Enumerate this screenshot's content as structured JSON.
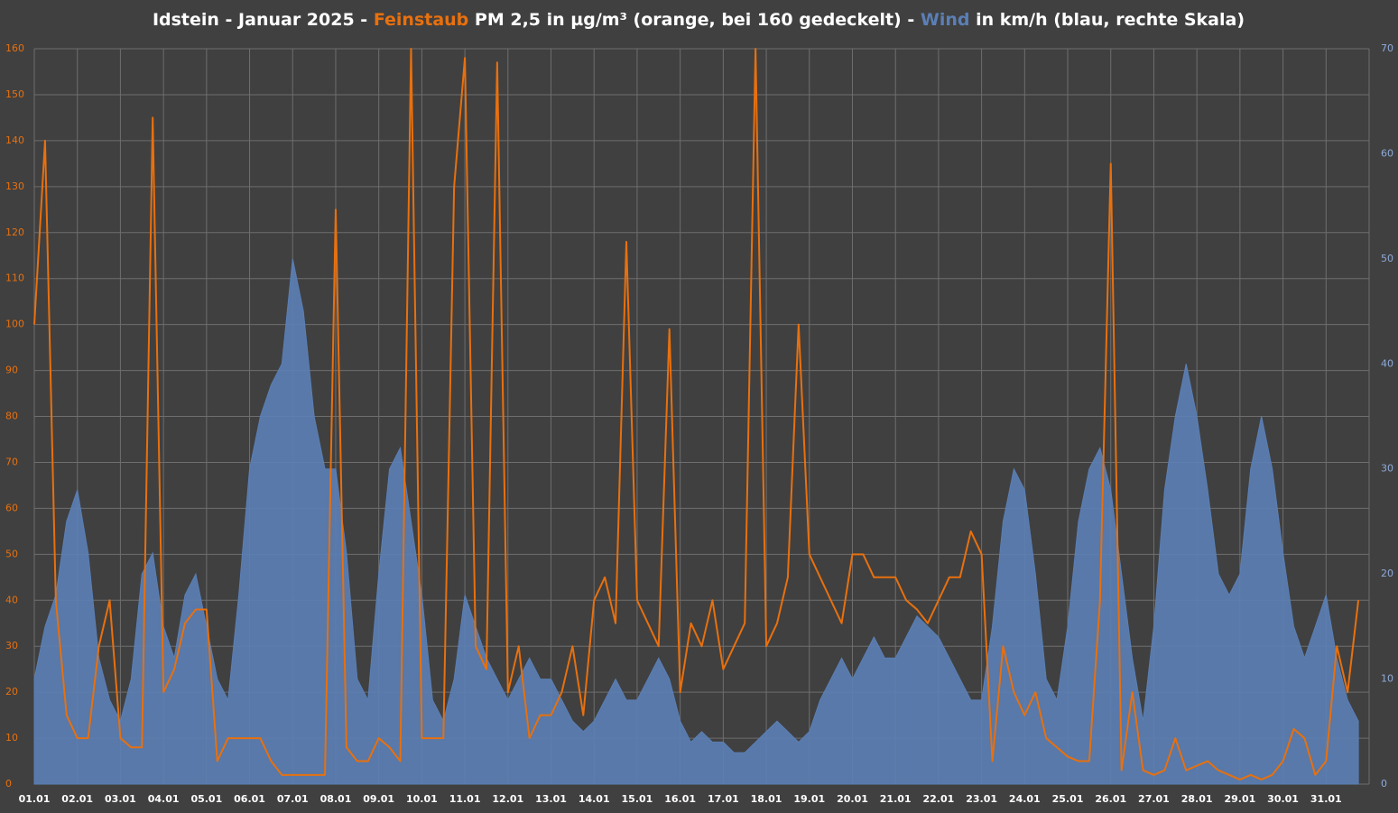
{
  "chart_data": {
    "type": "line",
    "title": [
      "Idstein - Januar 2025 - ",
      "Feinstaub",
      " PM 2,5 in µg/m³  (orange, bei 160 gedeckelt)  -  ",
      "Wind",
      " in km/h (blau, rechte Skala)"
    ],
    "xlim": [
      0,
      31
    ],
    "xticks": [
      {
        "value": 0,
        "label": "01.01"
      },
      {
        "value": 1,
        "label": "02.01"
      },
      {
        "value": 2,
        "label": "03.01"
      },
      {
        "value": 3,
        "label": "04.01"
      },
      {
        "value": 4,
        "label": "05.01"
      },
      {
        "value": 5,
        "label": "06.01"
      },
      {
        "value": 6,
        "label": "07.01"
      },
      {
        "value": 7,
        "label": "08.01"
      },
      {
        "value": 8,
        "label": "09.01"
      },
      {
        "value": 9,
        "label": "10.01"
      },
      {
        "value": 10,
        "label": "11.01"
      },
      {
        "value": 11,
        "label": "12.01"
      },
      {
        "value": 12,
        "label": "13.01"
      },
      {
        "value": 13,
        "label": "14.01"
      },
      {
        "value": 14,
        "label": "15.01"
      },
      {
        "value": 15,
        "label": "16.01"
      },
      {
        "value": 16,
        "label": "17.01"
      },
      {
        "value": 17,
        "label": "18.01"
      },
      {
        "value": 18,
        "label": "19.01"
      },
      {
        "value": 19,
        "label": "20.01"
      },
      {
        "value": 20,
        "label": "21.01"
      },
      {
        "value": 21,
        "label": "22.01"
      },
      {
        "value": 22,
        "label": "23.01"
      },
      {
        "value": 23,
        "label": "24.01"
      },
      {
        "value": 24,
        "label": "25.01"
      },
      {
        "value": 25,
        "label": "26.01"
      },
      {
        "value": 26,
        "label": "27.01"
      },
      {
        "value": 27,
        "label": "28.01"
      },
      {
        "value": 28,
        "label": "29.01"
      },
      {
        "value": 29,
        "label": "30.01"
      },
      {
        "value": 30,
        "label": "31.01"
      }
    ],
    "ylim": [
      0,
      160
    ],
    "yticks": [
      0,
      10,
      20,
      30,
      40,
      50,
      60,
      70,
      80,
      90,
      100,
      110,
      120,
      130,
      140,
      150,
      160
    ],
    "y2lim": [
      0,
      70
    ],
    "y2ticks": [
      0,
      10,
      20,
      30,
      40,
      50,
      60,
      70
    ],
    "grid": true,
    "x": [
      0,
      0.25,
      0.5,
      0.75,
      1,
      1.25,
      1.5,
      1.75,
      2,
      2.25,
      2.5,
      2.75,
      3,
      3.25,
      3.5,
      3.75,
      4,
      4.25,
      4.5,
      4.75,
      5,
      5.25,
      5.5,
      5.75,
      6,
      6.25,
      6.5,
      6.75,
      7,
      7.25,
      7.5,
      7.75,
      8,
      8.25,
      8.5,
      8.75,
      9,
      9.25,
      9.5,
      9.75,
      10,
      10.25,
      10.5,
      10.75,
      11,
      11.25,
      11.5,
      11.75,
      12,
      12.25,
      12.5,
      12.75,
      13,
      13.25,
      13.5,
      13.75,
      14,
      14.25,
      14.5,
      14.75,
      15,
      15.25,
      15.5,
      15.75,
      16,
      16.25,
      16.5,
      16.75,
      17,
      17.25,
      17.5,
      17.75,
      18,
      18.25,
      18.5,
      18.75,
      19,
      19.25,
      19.5,
      19.75,
      20,
      20.25,
      20.5,
      20.75,
      21,
      21.25,
      21.5,
      21.75,
      22,
      22.25,
      22.5,
      22.75,
      23,
      23.25,
      23.5,
      23.75,
      24,
      24.25,
      24.5,
      24.75,
      25,
      25.25,
      25.5,
      25.75,
      26,
      26.25,
      26.5,
      26.75,
      27,
      27.25,
      27.5,
      27.75,
      28,
      28.25,
      28.5,
      28.75,
      29,
      29.25,
      29.5,
      29.75,
      30,
      30.25,
      30.5,
      30.75
    ],
    "series": [
      {
        "name": "Wind",
        "color": "#5b7fb5",
        "axis": "y2",
        "fill": true,
        "values": [
          10,
          15,
          18,
          25,
          28,
          22,
          12,
          8,
          6,
          10,
          20,
          22,
          15,
          12,
          18,
          20,
          15,
          10,
          8,
          18,
          30,
          35,
          38,
          40,
          50,
          45,
          35,
          30,
          30,
          22,
          10,
          8,
          20,
          30,
          32,
          25,
          18,
          8,
          6,
          10,
          18,
          15,
          12,
          10,
          8,
          10,
          12,
          10,
          10,
          8,
          6,
          5,
          6,
          8,
          10,
          8,
          8,
          10,
          12,
          10,
          6,
          4,
          5,
          4,
          4,
          3,
          3,
          4,
          5,
          6,
          5,
          4,
          5,
          8,
          10,
          12,
          10,
          12,
          14,
          12,
          12,
          14,
          16,
          15,
          14,
          12,
          10,
          8,
          8,
          15,
          25,
          30,
          28,
          20,
          10,
          8,
          15,
          25,
          30,
          32,
          28,
          20,
          12,
          6,
          15,
          28,
          35,
          40,
          35,
          28,
          20,
          18,
          20,
          30,
          35,
          30,
          22,
          15,
          12,
          15,
          18,
          12,
          8,
          6
        ]
      },
      {
        "name": "Feinstaub",
        "color": "#e8700e",
        "axis": "y",
        "values": [
          100,
          140,
          40,
          15,
          10,
          10,
          30,
          40,
          10,
          8,
          8,
          145,
          20,
          25,
          35,
          38,
          38,
          5,
          10,
          10,
          10,
          10,
          5,
          2,
          2,
          2,
          2,
          2,
          125,
          8,
          5,
          5,
          10,
          8,
          5,
          160,
          10,
          10,
          10,
          130,
          158,
          30,
          25,
          157,
          20,
          30,
          10,
          15,
          15,
          20,
          30,
          15,
          40,
          45,
          35,
          118,
          40,
          35,
          30,
          99,
          20,
          35,
          30,
          40,
          25,
          30,
          35,
          160,
          30,
          35,
          45,
          100,
          50,
          45,
          40,
          35,
          50,
          50,
          45,
          45,
          45,
          40,
          38,
          35,
          40,
          45,
          45,
          55,
          50,
          5,
          30,
          20,
          15,
          20,
          10,
          8,
          6,
          5,
          5,
          40,
          135,
          3,
          20,
          3,
          2,
          3,
          10,
          3,
          4,
          5,
          3,
          2,
          1,
          2,
          1,
          2,
          5,
          12,
          10,
          2,
          5,
          30,
          20,
          40
        ]
      }
    ]
  }
}
